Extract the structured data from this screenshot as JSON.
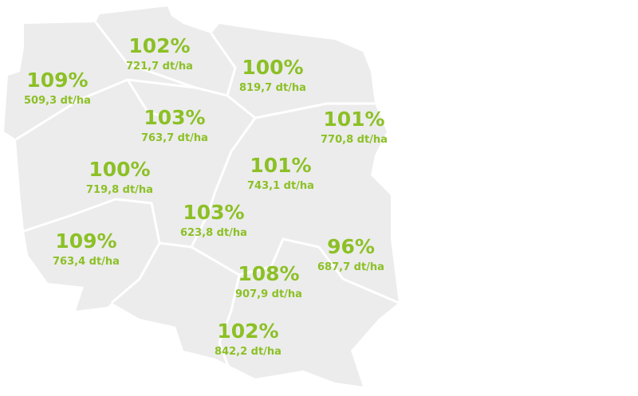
{
  "regions": [
    {
      "percent": "102%",
      "yield": "721,7 dt/ha"
    },
    {
      "percent": "109%",
      "yield": "509,3 dt/ha"
    },
    {
      "percent": "100%",
      "yield": "819,7 dt/ha"
    },
    {
      "percent": "103%",
      "yield": "763,7 dt/ha"
    },
    {
      "percent": "101%",
      "yield": "770,8 dt/ha"
    },
    {
      "percent": "101%",
      "yield": "743,1 dt/ha"
    },
    {
      "percent": "100%",
      "yield": "719,8 dt/ha"
    },
    {
      "percent": "103%",
      "yield": "623,8 dt/ha"
    },
    {
      "percent": "109%",
      "yield": "763,4 dt/ha"
    },
    {
      "percent": "96%",
      "yield": "687,7 dt/ha"
    },
    {
      "percent": "108%",
      "yield": "907,9 dt/ha"
    },
    {
      "percent": "102%",
      "yield": "842,2 dt/ha"
    }
  ]
}
